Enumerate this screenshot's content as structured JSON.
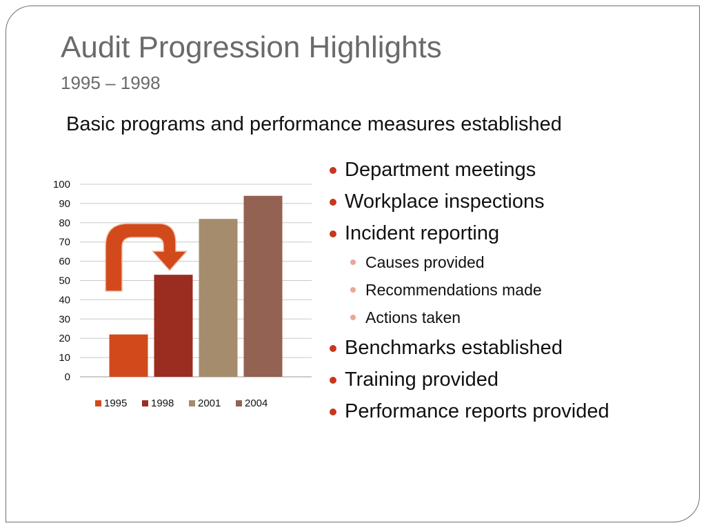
{
  "slide": {
    "title": "Audit Progression Highlights",
    "years": "1995 – 1998",
    "headline": "Basic programs and performance measures established"
  },
  "bullets": [
    {
      "level": 1,
      "text": "Department meetings"
    },
    {
      "level": 1,
      "text": "Workplace inspections"
    },
    {
      "level": 1,
      "text": "Incident reporting"
    },
    {
      "level": 2,
      "text": "Causes provided"
    },
    {
      "level": 2,
      "text": "Recommendations made"
    },
    {
      "level": 2,
      "text": "Actions taken"
    },
    {
      "level": 1,
      "text": "Benchmarks established"
    },
    {
      "level": 1,
      "text": "Training provided"
    },
    {
      "level": 1,
      "text": "Performance reports provided"
    }
  ],
  "colors": {
    "accent": "#c8361c",
    "sub_bullet": "#e8a898",
    "arrow": "#d24a1c"
  },
  "icons": {
    "arrow": "curved-arrow-icon"
  },
  "chart_data": {
    "type": "bar",
    "categories": [
      ""
    ],
    "series": [
      {
        "name": "1995",
        "values": [
          22
        ],
        "color": "#d24a1c"
      },
      {
        "name": "1998",
        "values": [
          53
        ],
        "color": "#9b2d20"
      },
      {
        "name": "2001",
        "values": [
          82
        ],
        "color": "#a58c6c"
      },
      {
        "name": "2004",
        "values": [
          94
        ],
        "color": "#946252"
      }
    ],
    "yticks": [
      0,
      10,
      20,
      30,
      40,
      50,
      60,
      70,
      80,
      90,
      100
    ],
    "ylim": [
      0,
      100
    ],
    "grid": true,
    "legend_position": "bottom",
    "title": "",
    "xlabel": "",
    "ylabel": ""
  }
}
